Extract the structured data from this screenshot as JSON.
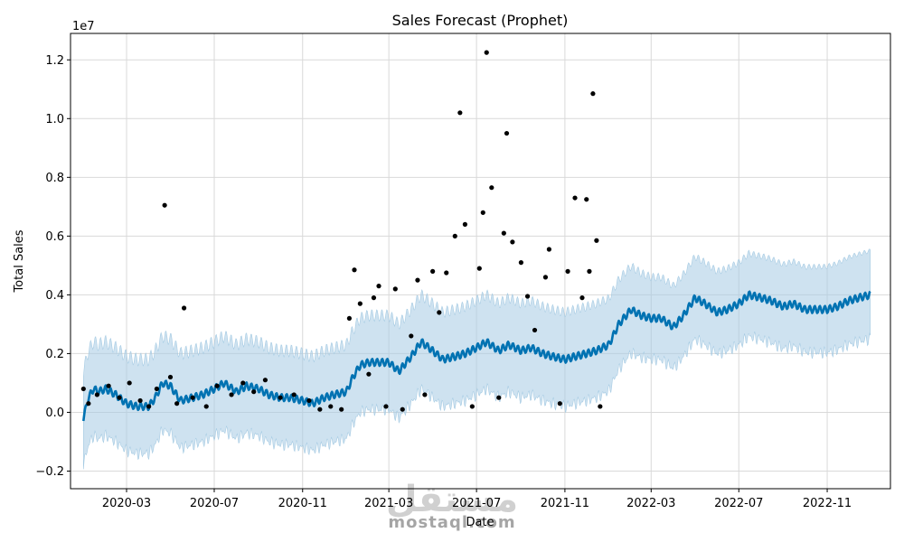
{
  "chart_data": {
    "type": "line",
    "title": "Sales Forecast (Prophet)",
    "xlabel": "Date",
    "ylabel": "Total Sales",
    "y_scale_label": "1e7",
    "ylim": [
      -0.26,
      1.29
    ],
    "xlim": [
      "2019-12-14",
      "2023-01-28"
    ],
    "y_ticks": [
      {
        "value": -0.2,
        "label": "−0.2"
      },
      {
        "value": 0.0,
        "label": "0.0"
      },
      {
        "value": 0.2,
        "label": "0.2"
      },
      {
        "value": 0.4,
        "label": "0.4"
      },
      {
        "value": 0.6,
        "label": "0.6"
      },
      {
        "value": 0.8,
        "label": "0.8"
      },
      {
        "value": 1.0,
        "label": "1.0"
      },
      {
        "value": 1.2,
        "label": "1.2"
      }
    ],
    "x_ticks": [
      {
        "date": "2020-03-01",
        "label": "2020-03"
      },
      {
        "date": "2020-07-01",
        "label": "2020-07"
      },
      {
        "date": "2020-11-01",
        "label": "2020-11"
      },
      {
        "date": "2021-03-01",
        "label": "2021-03"
      },
      {
        "date": "2021-07-01",
        "label": "2021-07"
      },
      {
        "date": "2021-11-01",
        "label": "2021-11"
      },
      {
        "date": "2022-03-01",
        "label": "2022-03"
      },
      {
        "date": "2022-07-01",
        "label": "2022-07"
      },
      {
        "date": "2022-11-01",
        "label": "2022-11"
      }
    ],
    "grid": true,
    "series": [
      {
        "name": "forecast (yhat)",
        "color": "#0072b2",
        "points": [
          [
            "2020-01-01",
            -0.02
          ],
          [
            "2020-01-08",
            0.05
          ],
          [
            "2020-01-15",
            0.08
          ],
          [
            "2020-01-22",
            0.07
          ],
          [
            "2020-02-01",
            0.08
          ],
          [
            "2020-02-15",
            0.06
          ],
          [
            "2020-03-01",
            0.03
          ],
          [
            "2020-03-15",
            0.02
          ],
          [
            "2020-04-01",
            0.02
          ],
          [
            "2020-04-10",
            0.05
          ],
          [
            "2020-04-20",
            0.1
          ],
          [
            "2020-05-01",
            0.09
          ],
          [
            "2020-05-15",
            0.04
          ],
          [
            "2020-06-01",
            0.05
          ],
          [
            "2020-06-15",
            0.06
          ],
          [
            "2020-07-01",
            0.08
          ],
          [
            "2020-07-15",
            0.1
          ],
          [
            "2020-08-01",
            0.07
          ],
          [
            "2020-08-15",
            0.09
          ],
          [
            "2020-09-01",
            0.08
          ],
          [
            "2020-09-15",
            0.06
          ],
          [
            "2020-10-01",
            0.05
          ],
          [
            "2020-10-15",
            0.05
          ],
          [
            "2020-11-01",
            0.04
          ],
          [
            "2020-11-15",
            0.03
          ],
          [
            "2020-12-01",
            0.05
          ],
          [
            "2020-12-15",
            0.06
          ],
          [
            "2021-01-01",
            0.07
          ],
          [
            "2021-01-10",
            0.12
          ],
          [
            "2021-01-20",
            0.16
          ],
          [
            "2021-02-01",
            0.17
          ],
          [
            "2021-02-15",
            0.17
          ],
          [
            "2021-03-01",
            0.17
          ],
          [
            "2021-03-15",
            0.14
          ],
          [
            "2021-04-01",
            0.19
          ],
          [
            "2021-04-15",
            0.24
          ],
          [
            "2021-05-01",
            0.21
          ],
          [
            "2021-05-15",
            0.18
          ],
          [
            "2021-06-01",
            0.19
          ],
          [
            "2021-06-15",
            0.2
          ],
          [
            "2021-07-01",
            0.22
          ],
          [
            "2021-07-15",
            0.24
          ],
          [
            "2021-08-01",
            0.21
          ],
          [
            "2021-08-15",
            0.23
          ],
          [
            "2021-09-01",
            0.21
          ],
          [
            "2021-09-15",
            0.22
          ],
          [
            "2021-10-01",
            0.2
          ],
          [
            "2021-10-15",
            0.19
          ],
          [
            "2021-11-01",
            0.18
          ],
          [
            "2021-11-15",
            0.19
          ],
          [
            "2021-12-01",
            0.2
          ],
          [
            "2021-12-15",
            0.21
          ],
          [
            "2022-01-01",
            0.23
          ],
          [
            "2022-01-15",
            0.3
          ],
          [
            "2022-02-01",
            0.35
          ],
          [
            "2022-02-15",
            0.33
          ],
          [
            "2022-03-01",
            0.32
          ],
          [
            "2022-03-15",
            0.32
          ],
          [
            "2022-04-01",
            0.29
          ],
          [
            "2022-04-15",
            0.33
          ],
          [
            "2022-05-01",
            0.39
          ],
          [
            "2022-05-15",
            0.37
          ],
          [
            "2022-06-01",
            0.34
          ],
          [
            "2022-06-15",
            0.35
          ],
          [
            "2022-07-01",
            0.37
          ],
          [
            "2022-07-15",
            0.4
          ],
          [
            "2022-08-01",
            0.39
          ],
          [
            "2022-08-15",
            0.38
          ],
          [
            "2022-09-01",
            0.36
          ],
          [
            "2022-09-15",
            0.37
          ],
          [
            "2022-10-01",
            0.35
          ],
          [
            "2022-10-15",
            0.35
          ],
          [
            "2022-11-01",
            0.35
          ],
          [
            "2022-11-15",
            0.36
          ],
          [
            "2022-12-01",
            0.38
          ],
          [
            "2022-12-15",
            0.39
          ],
          [
            "2022-12-31",
            0.4
          ]
        ]
      },
      {
        "name": "uncertainty interval",
        "color": "#a6cbe3",
        "half_width": [
          [
            "2020-01-01",
            0.16
          ],
          [
            "2021-01-01",
            0.16
          ],
          [
            "2021-12-20",
            0.16
          ],
          [
            "2022-03-01",
            0.14
          ],
          [
            "2022-07-01",
            0.14
          ],
          [
            "2022-12-31",
            0.15
          ]
        ]
      },
      {
        "name": "actual sales",
        "color": "#000000",
        "points": [
          [
            "2020-01-01",
            0.08
          ],
          [
            "2020-01-08",
            0.03
          ],
          [
            "2020-01-20",
            0.06
          ],
          [
            "2020-02-05",
            0.09
          ],
          [
            "2020-02-20",
            0.05
          ],
          [
            "2020-03-05",
            0.1
          ],
          [
            "2020-03-20",
            0.04
          ],
          [
            "2020-04-01",
            0.02
          ],
          [
            "2020-04-12",
            0.08
          ],
          [
            "2020-04-23",
            0.705
          ],
          [
            "2020-05-01",
            0.12
          ],
          [
            "2020-05-10",
            0.03
          ],
          [
            "2020-05-20",
            0.355
          ],
          [
            "2020-06-01",
            0.05
          ],
          [
            "2020-06-20",
            0.02
          ],
          [
            "2020-07-05",
            0.09
          ],
          [
            "2020-07-25",
            0.06
          ],
          [
            "2020-08-10",
            0.1
          ],
          [
            "2020-08-25",
            0.07
          ],
          [
            "2020-09-10",
            0.11
          ],
          [
            "2020-10-01",
            0.05
          ],
          [
            "2020-10-20",
            0.06
          ],
          [
            "2020-11-10",
            0.04
          ],
          [
            "2020-11-25",
            0.01
          ],
          [
            "2020-12-10",
            0.02
          ],
          [
            "2020-12-25",
            0.01
          ],
          [
            "2021-01-05",
            0.32
          ],
          [
            "2021-01-12",
            0.485
          ],
          [
            "2021-01-20",
            0.37
          ],
          [
            "2021-02-01",
            0.13
          ],
          [
            "2021-02-08",
            0.39
          ],
          [
            "2021-02-15",
            0.43
          ],
          [
            "2021-02-25",
            0.02
          ],
          [
            "2021-03-10",
            0.42
          ],
          [
            "2021-03-20",
            0.01
          ],
          [
            "2021-04-01",
            0.26
          ],
          [
            "2021-04-10",
            0.45
          ],
          [
            "2021-04-20",
            0.06
          ],
          [
            "2021-05-01",
            0.48
          ],
          [
            "2021-05-10",
            0.34
          ],
          [
            "2021-05-20",
            0.475
          ],
          [
            "2021-06-01",
            0.6
          ],
          [
            "2021-06-08",
            1.02
          ],
          [
            "2021-06-15",
            0.64
          ],
          [
            "2021-06-25",
            0.02
          ],
          [
            "2021-07-05",
            0.49
          ],
          [
            "2021-07-10",
            0.68
          ],
          [
            "2021-07-15",
            1.225
          ],
          [
            "2021-07-22",
            0.765
          ],
          [
            "2021-08-01",
            0.05
          ],
          [
            "2021-08-08",
            0.61
          ],
          [
            "2021-08-12",
            0.95
          ],
          [
            "2021-08-20",
            0.58
          ],
          [
            "2021-09-01",
            0.51
          ],
          [
            "2021-09-10",
            0.395
          ],
          [
            "2021-09-20",
            0.28
          ],
          [
            "2021-10-05",
            0.46
          ],
          [
            "2021-10-10",
            0.555
          ],
          [
            "2021-10-25",
            0.03
          ],
          [
            "2021-11-05",
            0.48
          ],
          [
            "2021-11-15",
            0.73
          ],
          [
            "2021-11-25",
            0.39
          ],
          [
            "2021-12-01",
            0.725
          ],
          [
            "2021-12-05",
            0.48
          ],
          [
            "2021-12-10",
            1.085
          ],
          [
            "2021-12-15",
            0.585
          ],
          [
            "2021-12-20",
            0.02
          ]
        ]
      }
    ]
  },
  "watermark": {
    "arabic": "مستقل",
    "latin": "mostaql.com"
  }
}
